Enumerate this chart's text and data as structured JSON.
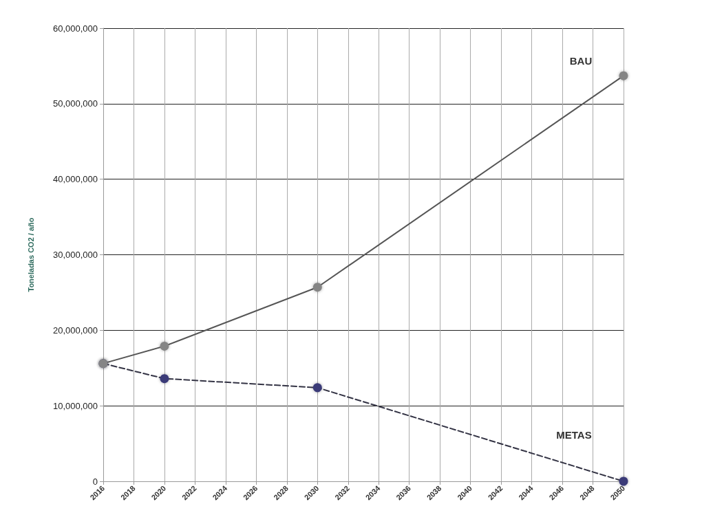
{
  "chart_data": {
    "type": "line",
    "ylabel": "Toneladas CO2 / año",
    "x": [
      2016,
      2020,
      2030,
      2050
    ],
    "series": [
      {
        "name": "BAU",
        "color": "#858585",
        "values": [
          15600000,
          17900000,
          25700000,
          53700000
        ],
        "line_style": "solid"
      },
      {
        "name": "METAS",
        "color": "#3b3b78",
        "values": [
          15600000,
          13600000,
          12400000,
          0
        ],
        "line_style": "dashed"
      }
    ],
    "xlim": [
      2016,
      2050
    ],
    "xticks": [
      2016,
      2018,
      2020,
      2022,
      2024,
      2026,
      2028,
      2030,
      2032,
      2034,
      2036,
      2038,
      2040,
      2042,
      2044,
      2046,
      2048,
      2050
    ],
    "ylim": [
      0,
      60000000
    ],
    "yticks": [
      0,
      {
        "value": 10000000,
        "label": "10,000,000"
      },
      {
        "value": 20000000,
        "label": "20,000,000"
      },
      {
        "value": 30000000,
        "label": "30,000,000"
      },
      {
        "value": 40000000,
        "label": "40,000,000"
      },
      {
        "value": 50000000,
        "label": "50,000,000"
      },
      {
        "value": 60000000,
        "label": "60,000,000"
      }
    ],
    "grid": true,
    "marker": "circle",
    "legend": false
  }
}
